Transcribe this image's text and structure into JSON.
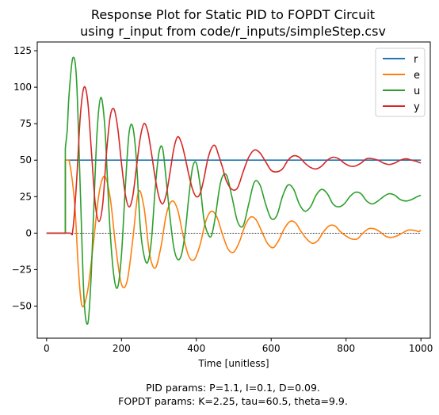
{
  "chart_data": {
    "type": "line",
    "title_line1": "Response Plot for Static PID to FOPDT Circuit",
    "title_line2": "using r_input from code/r_inputs/simpleStep.csv",
    "xlabel": "Time [unitless]",
    "ylabel": "",
    "xlim": [
      -25,
      1025
    ],
    "ylim": [
      -72,
      131
    ],
    "x_ticks": [
      0,
      200,
      400,
      600,
      800,
      1000
    ],
    "x_tick_labels": [
      "0",
      "200",
      "400",
      "600",
      "800",
      "1000"
    ],
    "y_ticks": [
      -50,
      -25,
      0,
      25,
      50,
      75,
      100,
      125
    ],
    "y_tick_labels": [
      "−50",
      "−25",
      "0",
      "25",
      "50",
      "75",
      "100",
      "125"
    ],
    "zero_line": true,
    "legend_position": "top-right",
    "colors": {
      "r": "#1f77b4",
      "e": "#ff7f0e",
      "u": "#2ca02c",
      "y": "#d62728",
      "zero": "#000000"
    },
    "series": [
      {
        "name": "r",
        "x": [
          0,
          50,
          50,
          1000
        ],
        "y": [
          0,
          0,
          50,
          50
        ]
      },
      {
        "name": "e",
        "x": [
          0,
          50,
          50,
          60,
          75,
          85,
          95,
          110,
          125,
          140,
          155,
          170,
          185,
          200,
          215,
          230,
          245,
          260,
          275,
          290,
          305,
          320,
          335,
          350,
          365,
          380,
          395,
          410,
          425,
          440,
          455,
          470,
          485,
          500,
          515,
          530,
          545,
          560,
          575,
          590,
          605,
          620,
          635,
          650,
          665,
          680,
          695,
          710,
          725,
          740,
          755,
          770,
          785,
          800,
          815,
          830,
          845,
          860,
          875,
          890,
          905,
          920,
          935,
          950,
          965,
          980,
          995,
          1000
        ],
        "y": [
          0,
          0,
          50,
          50,
          20,
          -25,
          -50,
          -39,
          -7,
          27,
          39,
          24,
          -10,
          -35,
          -33,
          -5,
          28,
          18,
          -14,
          -24,
          -10,
          13,
          22,
          16,
          -2,
          -16,
          -18,
          -8,
          8,
          15,
          11,
          -1,
          -11,
          -13,
          -6,
          5,
          11,
          9,
          1,
          -7,
          -10,
          -5,
          3,
          8,
          7,
          1,
          -4,
          -7,
          -5,
          1,
          5,
          5,
          1,
          -2,
          -4,
          -4,
          0,
          3,
          3,
          1,
          -2,
          -3,
          -2,
          0,
          2,
          2,
          1,
          2
        ]
      },
      {
        "name": "u",
        "x": [
          0,
          50,
          50,
          55,
          60,
          70,
          80,
          90,
          100,
          110,
          118,
          125,
          135,
          145,
          155,
          162,
          170,
          180,
          190,
          200,
          210,
          220,
          230,
          240,
          250,
          260,
          270,
          280,
          290,
          300,
          310,
          320,
          330,
          340,
          350,
          360,
          370,
          380,
          390,
          400,
          410,
          420,
          430,
          440,
          450,
          465,
          480,
          495,
          510,
          525,
          540,
          555,
          570,
          585,
          600,
          615,
          630,
          645,
          660,
          675,
          690,
          705,
          720,
          735,
          750,
          765,
          780,
          795,
          810,
          825,
          840,
          855,
          870,
          885,
          900,
          915,
          930,
          945,
          960,
          975,
          990,
          1000
        ],
        "y": [
          0,
          0,
          58,
          70,
          95,
          120,
          105,
          30,
          -45,
          -62,
          -35,
          10,
          70,
          93,
          75,
          40,
          0,
          -30,
          -37,
          -15,
          30,
          68,
          73,
          50,
          5,
          -15,
          -20,
          -5,
          30,
          55,
          58,
          35,
          10,
          -10,
          -18,
          -15,
          0,
          25,
          45,
          48,
          33,
          10,
          0,
          -2,
          10,
          35,
          40,
          25,
          8,
          5,
          20,
          35,
          33,
          20,
          10,
          12,
          25,
          33,
          30,
          20,
          15,
          18,
          26,
          30,
          27,
          20,
          18,
          20,
          25,
          28,
          27,
          22,
          20,
          22,
          25,
          27,
          26,
          23,
          22,
          23,
          25,
          26
        ]
      },
      {
        "name": "y",
        "x": [
          0,
          60,
          70,
          80,
          90,
          100,
          110,
          120,
          130,
          140,
          150,
          160,
          170,
          180,
          190,
          200,
          210,
          220,
          230,
          240,
          250,
          260,
          270,
          280,
          290,
          300,
          310,
          320,
          330,
          340,
          350,
          360,
          370,
          380,
          390,
          400,
          410,
          420,
          430,
          440,
          450,
          460,
          470,
          480,
          495,
          510,
          525,
          540,
          555,
          570,
          585,
          600,
          615,
          630,
          645,
          660,
          675,
          690,
          705,
          720,
          735,
          750,
          765,
          780,
          795,
          810,
          825,
          840,
          855,
          870,
          885,
          900,
          915,
          930,
          945,
          960,
          975,
          990,
          1000
        ],
        "y": [
          0,
          0,
          2,
          35,
          80,
          100,
          90,
          55,
          20,
          8,
          20,
          55,
          80,
          85,
          72,
          48,
          27,
          18,
          25,
          45,
          65,
          75,
          70,
          55,
          38,
          25,
          20,
          27,
          42,
          58,
          66,
          62,
          52,
          40,
          30,
          25,
          27,
          37,
          50,
          58,
          60,
          53,
          45,
          36,
          30,
          31,
          42,
          52,
          57,
          55,
          49,
          43,
          42,
          44,
          50,
          53,
          52,
          48,
          45,
          44,
          46,
          50,
          52,
          51,
          48,
          46,
          46,
          48,
          51,
          51,
          50,
          48,
          47,
          48,
          50,
          51,
          50,
          49,
          48
        ]
      }
    ]
  },
  "footer_line1": "PID params: P=1.1, I=0.1, D=0.09.",
  "footer_line2": "FOPDT params: K=2.25, tau=60.5, theta=9.9."
}
